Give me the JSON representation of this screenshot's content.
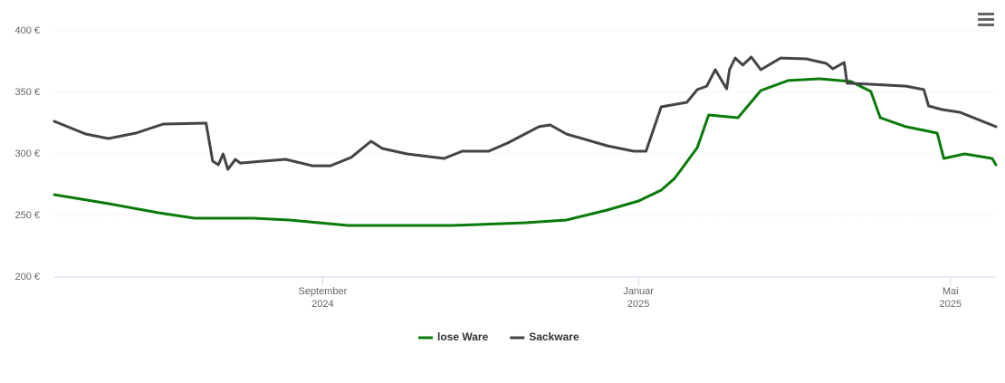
{
  "chart_data": {
    "type": "line",
    "xlim": [
      2024.384,
      2025.377
    ],
    "xticks": [
      {
        "value": 2024.667,
        "label": "September\n2024"
      },
      {
        "value": 2025.0,
        "label": "Januar\n2025"
      },
      {
        "value": 2025.329,
        "label": "Mai\n2025"
      }
    ],
    "ylim": [
      200,
      400
    ],
    "yticks": [
      {
        "value": 200,
        "label": "200 €"
      },
      {
        "value": 250,
        "label": "250 €"
      },
      {
        "value": 300,
        "label": "300 €"
      },
      {
        "value": 350,
        "label": "350 €"
      },
      {
        "value": 400,
        "label": "400 €"
      }
    ],
    "grid": true,
    "legend": "bottom",
    "series": [
      {
        "name": "lose Ware",
        "color": "#0a7a0a",
        "x": [
          2024.384,
          2024.441,
          2024.494,
          2024.532,
          2024.594,
          2024.632,
          2024.694,
          2024.804,
          2024.881,
          2024.924,
          2024.967,
          2025.0,
          2025.024,
          2025.038,
          2025.048,
          2025.062,
          2025.074,
          2025.105,
          2025.129,
          2025.158,
          2025.191,
          2025.224,
          2025.245,
          2025.255,
          2025.282,
          2025.315,
          2025.322,
          2025.344,
          2025.373,
          2025.377
        ],
        "values": [
          266.9,
          259.6,
          252.2,
          247.8,
          247.8,
          246.3,
          241.9,
          241.9,
          244.1,
          246.3,
          254.4,
          261.8,
          270.6,
          280.1,
          290.4,
          305.1,
          331.6,
          329.4,
          351.5,
          359.6,
          361.0,
          358.8,
          350.7,
          329.4,
          322.1,
          316.9,
          296.3,
          300.0,
          296.3,
          291.2
        ]
      },
      {
        "name": "Sackware",
        "color": "#434348",
        "x": [
          2024.384,
          2024.417,
          2024.441,
          2024.47,
          2024.499,
          2024.544,
          2024.551,
          2024.557,
          2024.562,
          2024.567,
          2024.575,
          2024.58,
          2024.604,
          2024.628,
          2024.656,
          2024.675,
          2024.697,
          2024.718,
          2024.73,
          2024.756,
          2024.795,
          2024.814,
          2024.842,
          2024.862,
          2024.895,
          2024.907,
          2024.924,
          2024.967,
          2024.995,
          2025.008,
          2025.024,
          2025.051,
          2025.062,
          2025.072,
          2025.081,
          2025.093,
          2025.096,
          2025.102,
          2025.11,
          2025.119,
          2025.129,
          2025.15,
          2025.177,
          2025.198,
          2025.205,
          2025.217,
          2025.22,
          2025.244,
          2025.282,
          2025.301,
          2025.306,
          2025.32,
          2025.339,
          2025.377
        ],
        "values": [
          326.5,
          316.2,
          312.5,
          316.9,
          324.3,
          325.0,
          294.1,
          291.2,
          300.0,
          287.5,
          295.6,
          292.6,
          294.1,
          295.6,
          290.4,
          290.4,
          297.1,
          310.3,
          304.4,
          300.0,
          296.3,
          302.2,
          302.2,
          308.8,
          322.1,
          323.5,
          316.2,
          306.6,
          302.2,
          302.2,
          338.2,
          341.9,
          352.2,
          355.1,
          368.4,
          352.9,
          368.4,
          377.9,
          372.1,
          378.7,
          368.4,
          377.9,
          377.2,
          373.5,
          369.1,
          374.3,
          357.4,
          356.6,
          355.1,
          352.2,
          339.0,
          336.0,
          333.8,
          322.1
        ]
      }
    ]
  }
}
